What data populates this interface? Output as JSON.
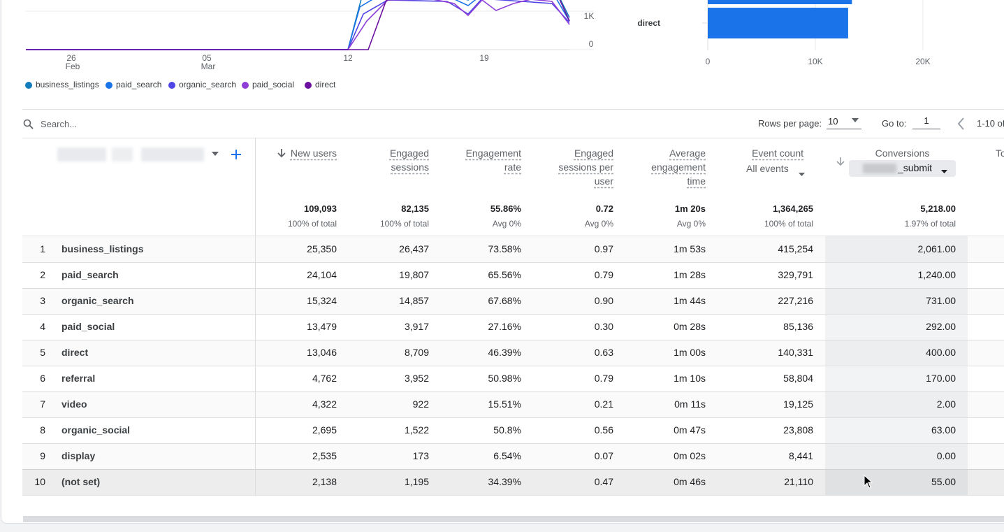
{
  "line_chart": {
    "x_ticks": [
      {
        "day": "26",
        "month": "Feb"
      },
      {
        "day": "05",
        "month": "Mar"
      },
      {
        "day": "12"
      },
      {
        "day": "19"
      }
    ],
    "y_ticks": [
      "1K",
      "0"
    ],
    "legend": [
      {
        "name": "business_listings",
        "color": "#137cbd"
      },
      {
        "name": "paid_search",
        "color": "#1a73e8"
      },
      {
        "name": "organic_search",
        "color": "#4f46e5"
      },
      {
        "name": "paid_social",
        "color": "#8e3fd8"
      },
      {
        "name": "direct",
        "color": "#6a0f9e"
      }
    ]
  },
  "bar_chart": {
    "type": "bar",
    "orientation": "horizontal",
    "categories": [
      null,
      "direct"
    ],
    "values": [
      13400,
      13046
    ],
    "color": "#1a73e8",
    "xlim": [
      0,
      20000
    ],
    "xticks": [
      0,
      {
        "value": 10000,
        "label": "10K"
      },
      {
        "value": 20000,
        "label": "20K"
      }
    ],
    "grid": true
  },
  "toolbar": {
    "search_placeholder": "Search...",
    "rows_per_page_label": "Rows per page:",
    "rows_per_page": "10",
    "go_to_label": "Go to:",
    "go_to": "1",
    "range": "1-10 of"
  },
  "table": {
    "headers": [
      "New users",
      "Engaged sessions",
      "Engagement rate",
      "Engaged sessions per user",
      "Average engagement time",
      "Event count",
      "Conversions",
      "To"
    ],
    "event_filter": "All events",
    "conversion_filter": "_submit",
    "totals": [
      {
        "value": "109,093",
        "note": "100% of total"
      },
      {
        "value": "82,135",
        "note": "100% of total"
      },
      {
        "value": "55.86%",
        "note": "Avg 0%"
      },
      {
        "value": "0.72",
        "note": "Avg 0%"
      },
      {
        "value": "1m 20s",
        "note": "Avg 0%"
      },
      {
        "value": "1,364,265",
        "note": "100% of total"
      },
      {
        "value": "5,218.00",
        "note": "1.97% of total"
      }
    ],
    "rows": [
      [
        "1",
        "business_listings",
        "25,350",
        "26,437",
        "73.58%",
        "0.97",
        "1m 53s",
        "415,254",
        "2,061.00"
      ],
      [
        "2",
        "paid_search",
        "24,104",
        "19,807",
        "65.56%",
        "0.79",
        "1m 28s",
        "329,791",
        "1,240.00"
      ],
      [
        "3",
        "organic_search",
        "15,324",
        "14,857",
        "67.68%",
        "0.90",
        "1m 44s",
        "227,216",
        "731.00"
      ],
      [
        "4",
        "paid_social",
        "13,479",
        "3,917",
        "27.16%",
        "0.30",
        "0m 28s",
        "85,136",
        "292.00"
      ],
      [
        "5",
        "direct",
        "13,046",
        "8,709",
        "46.39%",
        "0.63",
        "1m 00s",
        "140,331",
        "400.00"
      ],
      [
        "6",
        "referral",
        "4,762",
        "3,952",
        "50.98%",
        "0.79",
        "1m 10s",
        "58,804",
        "170.00"
      ],
      [
        "7",
        "video",
        "4,322",
        "922",
        "15.51%",
        "0.21",
        "0m 11s",
        "19,125",
        "2.00"
      ],
      [
        "8",
        "organic_social",
        "2,695",
        "1,522",
        "50.8%",
        "0.56",
        "0m 47s",
        "23,808",
        "63.00"
      ],
      [
        "9",
        "display",
        "2,535",
        "173",
        "6.54%",
        "0.07",
        "0m 02s",
        "8,441",
        "0.00"
      ],
      [
        "10",
        "(not set)",
        "2,138",
        "1,195",
        "34.39%",
        "0.47",
        "0m 46s",
        "21,110",
        "55.00"
      ]
    ]
  }
}
